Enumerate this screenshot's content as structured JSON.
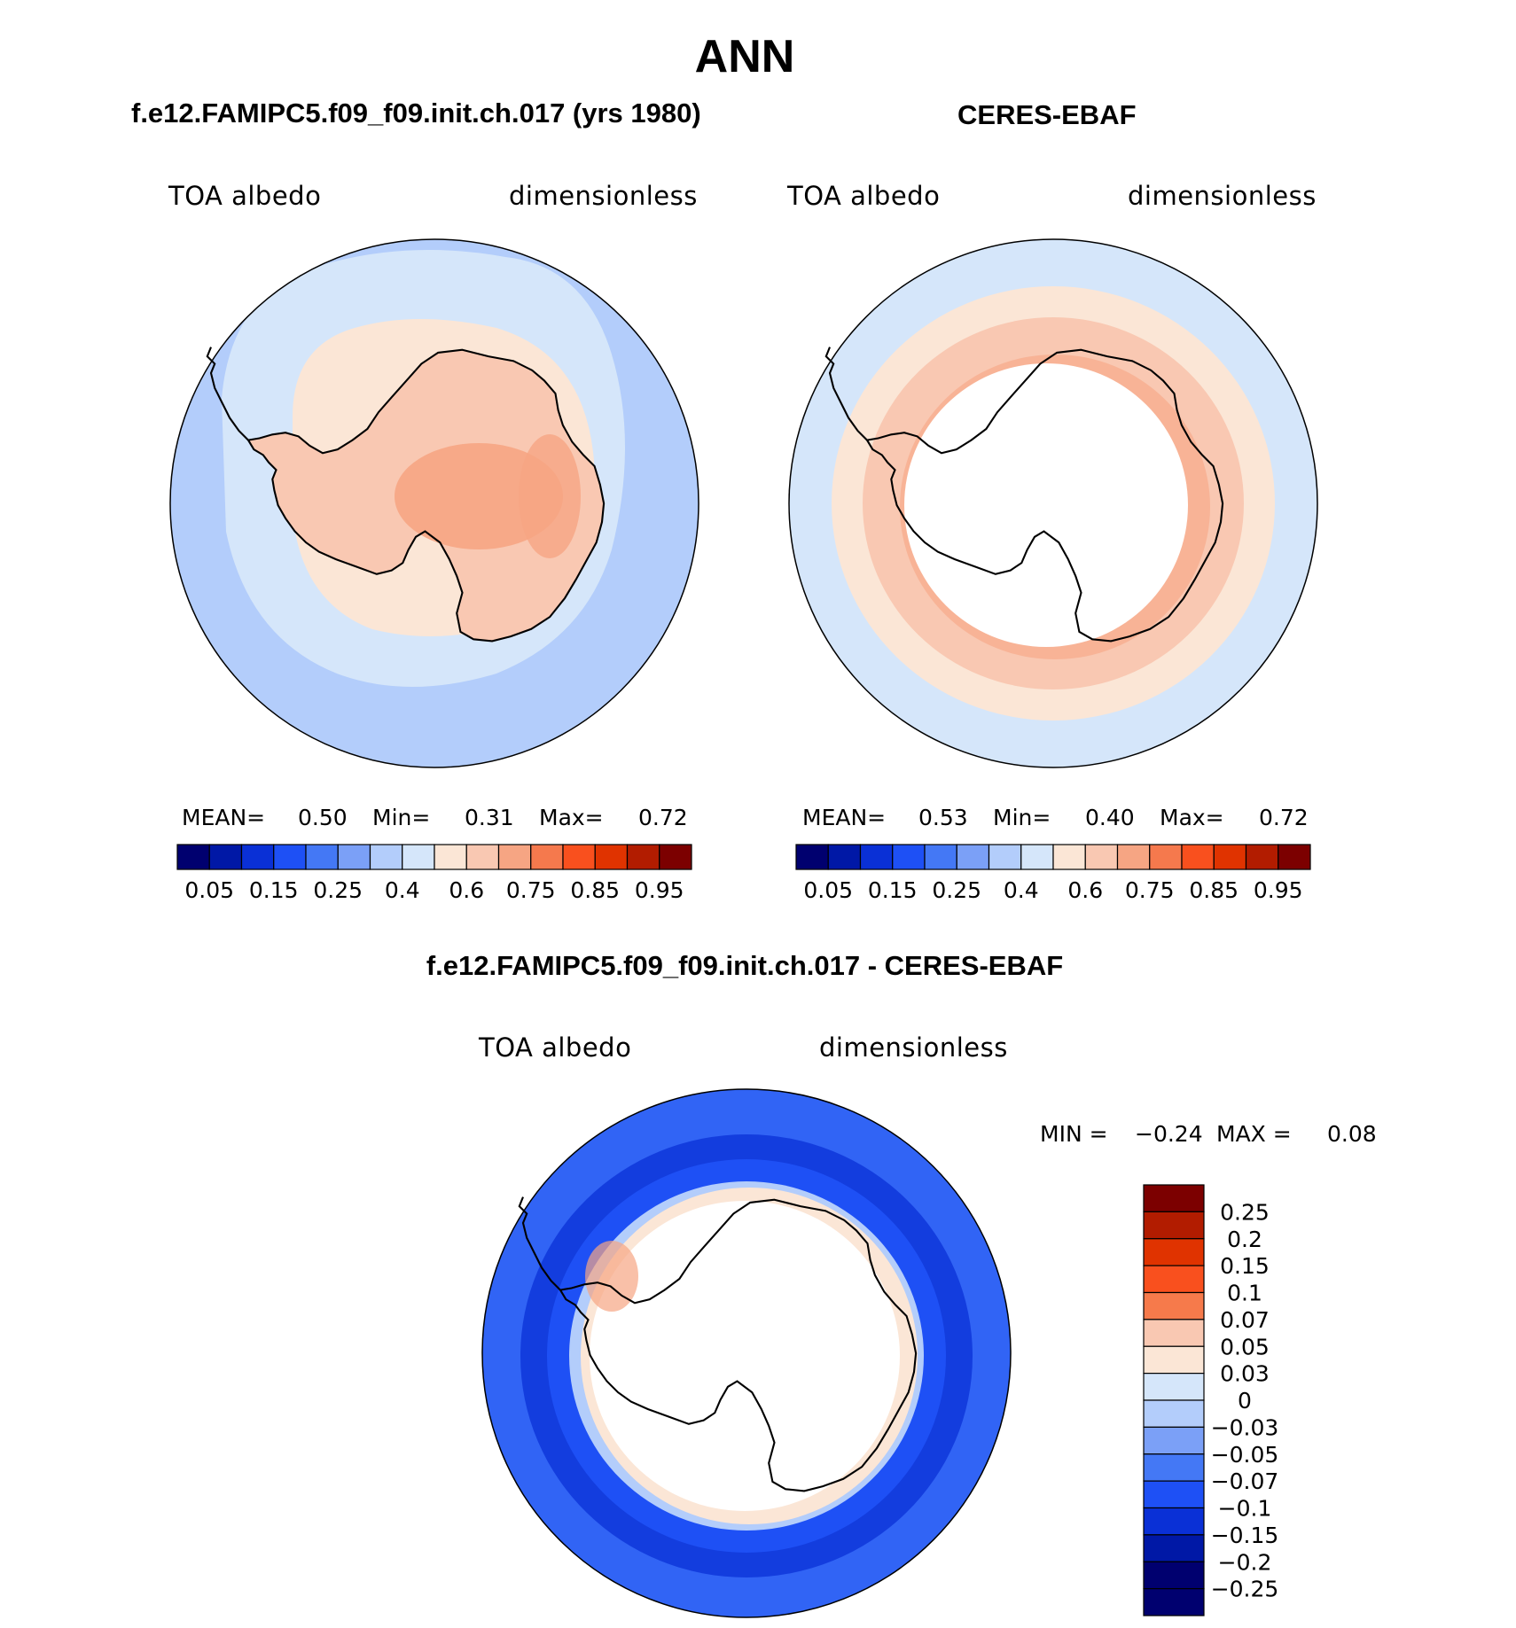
{
  "title": "ANN",
  "panels": [
    {
      "title": "f.e12.FAMIPC5.f09_f09.init.ch.017 (yrs 1980)",
      "variable": "TOA albedo",
      "units": "dimensionless",
      "stats": {
        "mean_label": "MEAN=",
        "mean": "0.50",
        "min_label": "Min=",
        "min": "0.31",
        "max_label": "Max=",
        "max": "0.72"
      }
    },
    {
      "title": "CERES-EBAF",
      "variable": "TOA albedo",
      "units": "dimensionless",
      "stats": {
        "mean_label": "MEAN=",
        "mean": "0.53",
        "min_label": "Min=",
        "min": "0.40",
        "max_label": "Max=",
        "max": "0.72"
      }
    },
    {
      "title": "f.e12.FAMIPC5.f09_f09.init.ch.017 - CERES-EBAF",
      "variable": "TOA albedo",
      "units": "dimensionless",
      "stats": {
        "min_label": "MIN =",
        "min": "−0.24",
        "max_label": "MAX =",
        "max": "0.08"
      }
    }
  ],
  "colors": {
    "abs_bar": [
      "#00006f",
      "#0018a6",
      "#0a30d6",
      "#1e50f5",
      "#4478f5",
      "#7ba0f7",
      "#b3cdfb",
      "#d5e6fa",
      "#fbe6d6",
      "#f9c8b2",
      "#f6a583",
      "#f5794d",
      "#f9501e",
      "#e03300",
      "#b21c00",
      "#7c0000"
    ],
    "diff_bar": [
      "#7c0000",
      "#b21c00",
      "#e03300",
      "#f9501e",
      "#f67a4b",
      "#f9c8b2",
      "#fbe6d6",
      "#d5e6fa",
      "#b3cdfb",
      "#7ba0f7",
      "#4478f5",
      "#1e50f5",
      "#0a30d6",
      "#0018a6",
      "#00006f"
    ]
  },
  "chart_data": [
    {
      "type": "heatmap",
      "projection": "south-polar-stereographic",
      "title": "f.e12.FAMIPC5.f09_f09.init.ch.017 (yrs 1980)",
      "variable": "TOA albedo",
      "units": "dimensionless",
      "mean": 0.5,
      "min": 0.31,
      "max": 0.72,
      "colorbar_ticks": [
        "0.05",
        "0.15",
        "0.25",
        "0.4",
        "0.6",
        "0.75",
        "0.85",
        "0.95"
      ],
      "levels": [
        0.05,
        0.1,
        0.15,
        0.2,
        0.25,
        0.3,
        0.4,
        0.5,
        0.6,
        0.7,
        0.75,
        0.8,
        0.85,
        0.9,
        0.95
      ]
    },
    {
      "type": "heatmap",
      "projection": "south-polar-stereographic",
      "title": "CERES-EBAF",
      "variable": "TOA albedo",
      "units": "dimensionless",
      "mean": 0.53,
      "min": 0.4,
      "max": 0.72,
      "colorbar_ticks": [
        "0.05",
        "0.15",
        "0.25",
        "0.4",
        "0.6",
        "0.75",
        "0.85",
        "0.95"
      ],
      "levels": [
        0.05,
        0.1,
        0.15,
        0.2,
        0.25,
        0.3,
        0.4,
        0.5,
        0.6,
        0.7,
        0.75,
        0.8,
        0.85,
        0.9,
        0.95
      ]
    },
    {
      "type": "heatmap",
      "projection": "south-polar-stereographic",
      "title": "f.e12.FAMIPC5.f09_f09.init.ch.017 - CERES-EBAF",
      "variable": "TOA albedo",
      "units": "dimensionless",
      "min": -0.24,
      "max": 0.08,
      "colorbar_ticks": [
        "0.25",
        "0.2",
        "0.15",
        "0.1",
        "0.07",
        "0.05",
        "0.03",
        "0",
        "−0.03",
        "−0.05",
        "−0.07",
        "−0.1",
        "−0.15",
        "−0.2",
        "−0.25"
      ]
    }
  ]
}
